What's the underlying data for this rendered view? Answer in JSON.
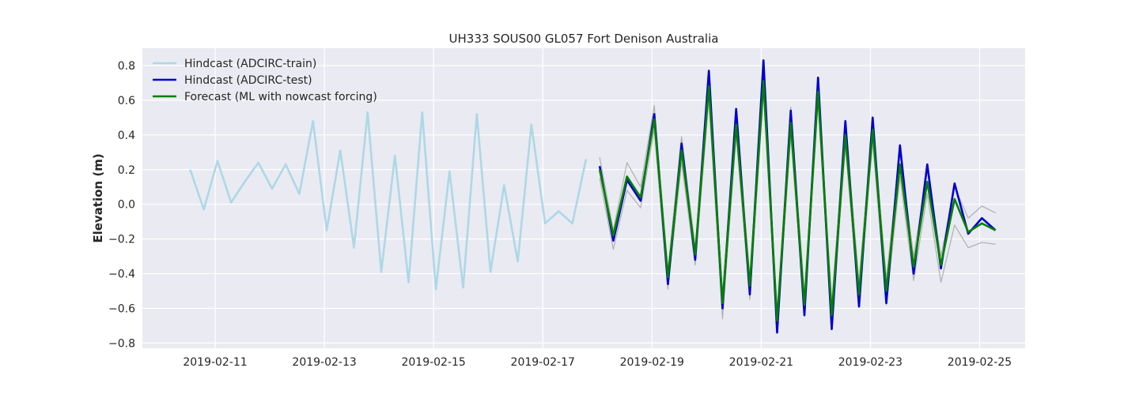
{
  "chart_data": {
    "type": "line",
    "title": "UH333 SOUS00 GL057 Fort Denison Australia",
    "xlabel": "",
    "ylabel": "Elevation (m)",
    "xlim": [
      "2019-02-09T16:00",
      "2019-02-25T20:00"
    ],
    "ylim": [
      -0.83,
      0.9
    ],
    "x_ticks": [
      "2019-02-11",
      "2019-02-13",
      "2019-02-15",
      "2019-02-17",
      "2019-02-19",
      "2019-02-21",
      "2019-02-23",
      "2019-02-25"
    ],
    "y_ticks": [
      -0.8,
      -0.6,
      -0.4,
      -0.2,
      0.0,
      0.2,
      0.4,
      0.6,
      0.8
    ],
    "y_tick_labels": [
      "−0.8",
      "−0.6",
      "−0.4",
      "−0.2",
      "0.0",
      "0.2",
      "0.4",
      "0.6",
      "0.8"
    ],
    "grid": true,
    "legend_position": "top-left",
    "colors": {
      "background": "#eaeaf2",
      "grid": "#ffffff",
      "train": "#add8e6",
      "test": "#0000cd",
      "forecast": "#008000",
      "envelope": "#a9a9a9"
    },
    "series": [
      {
        "name": "Hindcast (ADCIRC-train)",
        "color": "#add8e6",
        "x": [
          "2019-02-10T13:00",
          "2019-02-10T19:00",
          "2019-02-11T01:00",
          "2019-02-11T07:00",
          "2019-02-11T13:00",
          "2019-02-11T19:00",
          "2019-02-12T01:00",
          "2019-02-12T07:00",
          "2019-02-12T13:00",
          "2019-02-12T19:00",
          "2019-02-13T01:00",
          "2019-02-13T07:00",
          "2019-02-13T13:00",
          "2019-02-13T19:00",
          "2019-02-14T01:00",
          "2019-02-14T07:00",
          "2019-02-14T13:00",
          "2019-02-14T19:00",
          "2019-02-15T01:00",
          "2019-02-15T07:00",
          "2019-02-15T13:00",
          "2019-02-15T19:00",
          "2019-02-16T01:00",
          "2019-02-16T07:00",
          "2019-02-16T13:00",
          "2019-02-16T19:00",
          "2019-02-17T01:00",
          "2019-02-17T07:00",
          "2019-02-17T13:00",
          "2019-02-17T19:00"
        ],
        "values": [
          0.2,
          -0.03,
          0.25,
          0.01,
          0.13,
          0.24,
          0.09,
          0.23,
          0.06,
          0.48,
          -0.15,
          0.31,
          -0.25,
          0.53,
          -0.39,
          0.28,
          -0.45,
          0.53,
          -0.49,
          0.19,
          -0.48,
          0.52,
          -0.39,
          0.11,
          -0.33,
          0.46,
          -0.11,
          -0.04,
          -0.11,
          0.26
        ]
      },
      {
        "name": "Hindcast (ADCIRC-test)",
        "color": "#0000cd",
        "x": [
          "2019-02-18T01:00",
          "2019-02-18T07:00",
          "2019-02-18T13:00",
          "2019-02-18T19:00",
          "2019-02-19T01:00",
          "2019-02-19T07:00",
          "2019-02-19T13:00",
          "2019-02-19T19:00",
          "2019-02-20T01:00",
          "2019-02-20T07:00",
          "2019-02-20T13:00",
          "2019-02-20T19:00",
          "2019-02-21T01:00",
          "2019-02-21T07:00",
          "2019-02-21T13:00",
          "2019-02-21T19:00",
          "2019-02-22T01:00",
          "2019-02-22T07:00",
          "2019-02-22T13:00",
          "2019-02-22T19:00",
          "2019-02-23T01:00",
          "2019-02-23T07:00",
          "2019-02-23T13:00",
          "2019-02-23T19:00",
          "2019-02-24T01:00",
          "2019-02-24T07:00",
          "2019-02-24T13:00",
          "2019-02-24T19:00",
          "2019-02-25T01:00",
          "2019-02-25T07:00"
        ],
        "values": [
          0.22,
          -0.21,
          0.14,
          0.02,
          0.52,
          -0.46,
          0.35,
          -0.32,
          0.77,
          -0.6,
          0.55,
          -0.52,
          0.83,
          -0.74,
          0.54,
          -0.64,
          0.73,
          -0.72,
          0.48,
          -0.59,
          0.5,
          -0.57,
          0.34,
          -0.4,
          0.23,
          -0.37,
          0.12,
          -0.17,
          -0.08,
          -0.15
        ]
      },
      {
        "name": "Forecast (ML with nowcast forcing)",
        "color": "#008000",
        "x": [
          "2019-02-18T01:00",
          "2019-02-18T07:00",
          "2019-02-18T13:00",
          "2019-02-18T19:00",
          "2019-02-19T01:00",
          "2019-02-19T07:00",
          "2019-02-19T13:00",
          "2019-02-19T19:00",
          "2019-02-20T01:00",
          "2019-02-20T07:00",
          "2019-02-20T13:00",
          "2019-02-20T19:00",
          "2019-02-21T01:00",
          "2019-02-21T07:00",
          "2019-02-21T13:00",
          "2019-02-21T19:00",
          "2019-02-22T01:00",
          "2019-02-22T07:00",
          "2019-02-22T13:00",
          "2019-02-22T19:00",
          "2019-02-23T01:00",
          "2019-02-23T07:00",
          "2019-02-23T13:00",
          "2019-02-23T19:00",
          "2019-02-24T01:00",
          "2019-02-24T07:00",
          "2019-02-24T13:00",
          "2019-02-24T19:00",
          "2019-02-25T01:00",
          "2019-02-25T07:00"
        ],
        "values": [
          0.2,
          -0.18,
          0.16,
          0.04,
          0.49,
          -0.42,
          0.31,
          -0.29,
          0.68,
          -0.57,
          0.46,
          -0.47,
          0.71,
          -0.67,
          0.47,
          -0.58,
          0.65,
          -0.64,
          0.4,
          -0.52,
          0.43,
          -0.5,
          0.23,
          -0.36,
          0.13,
          -0.35,
          0.03,
          -0.16,
          -0.11,
          -0.15
        ]
      },
      {
        "name": "",
        "color": "#a9a9a9",
        "role": "upper-bound",
        "x": [
          "2019-02-18T01:00",
          "2019-02-18T07:00",
          "2019-02-18T13:00",
          "2019-02-18T19:00",
          "2019-02-19T01:00",
          "2019-02-19T07:00",
          "2019-02-19T13:00",
          "2019-02-19T19:00",
          "2019-02-20T01:00",
          "2019-02-20T07:00",
          "2019-02-20T13:00",
          "2019-02-20T19:00",
          "2019-02-21T01:00",
          "2019-02-21T07:00",
          "2019-02-21T13:00",
          "2019-02-21T19:00",
          "2019-02-22T01:00",
          "2019-02-22T07:00",
          "2019-02-22T13:00",
          "2019-02-22T19:00",
          "2019-02-23T01:00",
          "2019-02-23T07:00",
          "2019-02-23T13:00",
          "2019-02-23T19:00",
          "2019-02-24T01:00",
          "2019-02-24T07:00",
          "2019-02-24T13:00",
          "2019-02-24T19:00",
          "2019-02-25T01:00",
          "2019-02-25T07:00"
        ],
        "values": [
          0.27,
          -0.15,
          0.24,
          0.1,
          0.57,
          -0.38,
          0.39,
          -0.25,
          0.76,
          -0.52,
          0.53,
          -0.42,
          0.79,
          -0.62,
          0.56,
          -0.52,
          0.71,
          -0.57,
          0.47,
          -0.45,
          0.49,
          -0.43,
          0.3,
          -0.3,
          0.19,
          -0.3,
          0.1,
          -0.08,
          -0.01,
          -0.05
        ]
      },
      {
        "name": "",
        "color": "#a9a9a9",
        "role": "lower-bound",
        "x": [
          "2019-02-18T01:00",
          "2019-02-18T07:00",
          "2019-02-18T13:00",
          "2019-02-18T19:00",
          "2019-02-19T01:00",
          "2019-02-19T07:00",
          "2019-02-19T13:00",
          "2019-02-19T19:00",
          "2019-02-20T01:00",
          "2019-02-20T07:00",
          "2019-02-20T13:00",
          "2019-02-20T19:00",
          "2019-02-21T01:00",
          "2019-02-21T07:00",
          "2019-02-21T13:00",
          "2019-02-21T19:00",
          "2019-02-22T01:00",
          "2019-02-22T07:00",
          "2019-02-22T13:00",
          "2019-02-22T19:00",
          "2019-02-23T01:00",
          "2019-02-23T07:00",
          "2019-02-23T13:00",
          "2019-02-23T19:00",
          "2019-02-24T01:00",
          "2019-02-24T07:00",
          "2019-02-24T13:00",
          "2019-02-24T19:00",
          "2019-02-25T01:00",
          "2019-02-25T07:00"
        ],
        "values": [
          0.15,
          -0.26,
          0.08,
          -0.02,
          0.43,
          -0.49,
          0.24,
          -0.35,
          0.6,
          -0.66,
          0.4,
          -0.55,
          0.64,
          -0.73,
          0.4,
          -0.63,
          0.59,
          -0.7,
          0.33,
          -0.57,
          0.36,
          -0.58,
          0.16,
          -0.44,
          0.06,
          -0.45,
          -0.12,
          -0.25,
          -0.22,
          -0.23
        ]
      }
    ]
  }
}
